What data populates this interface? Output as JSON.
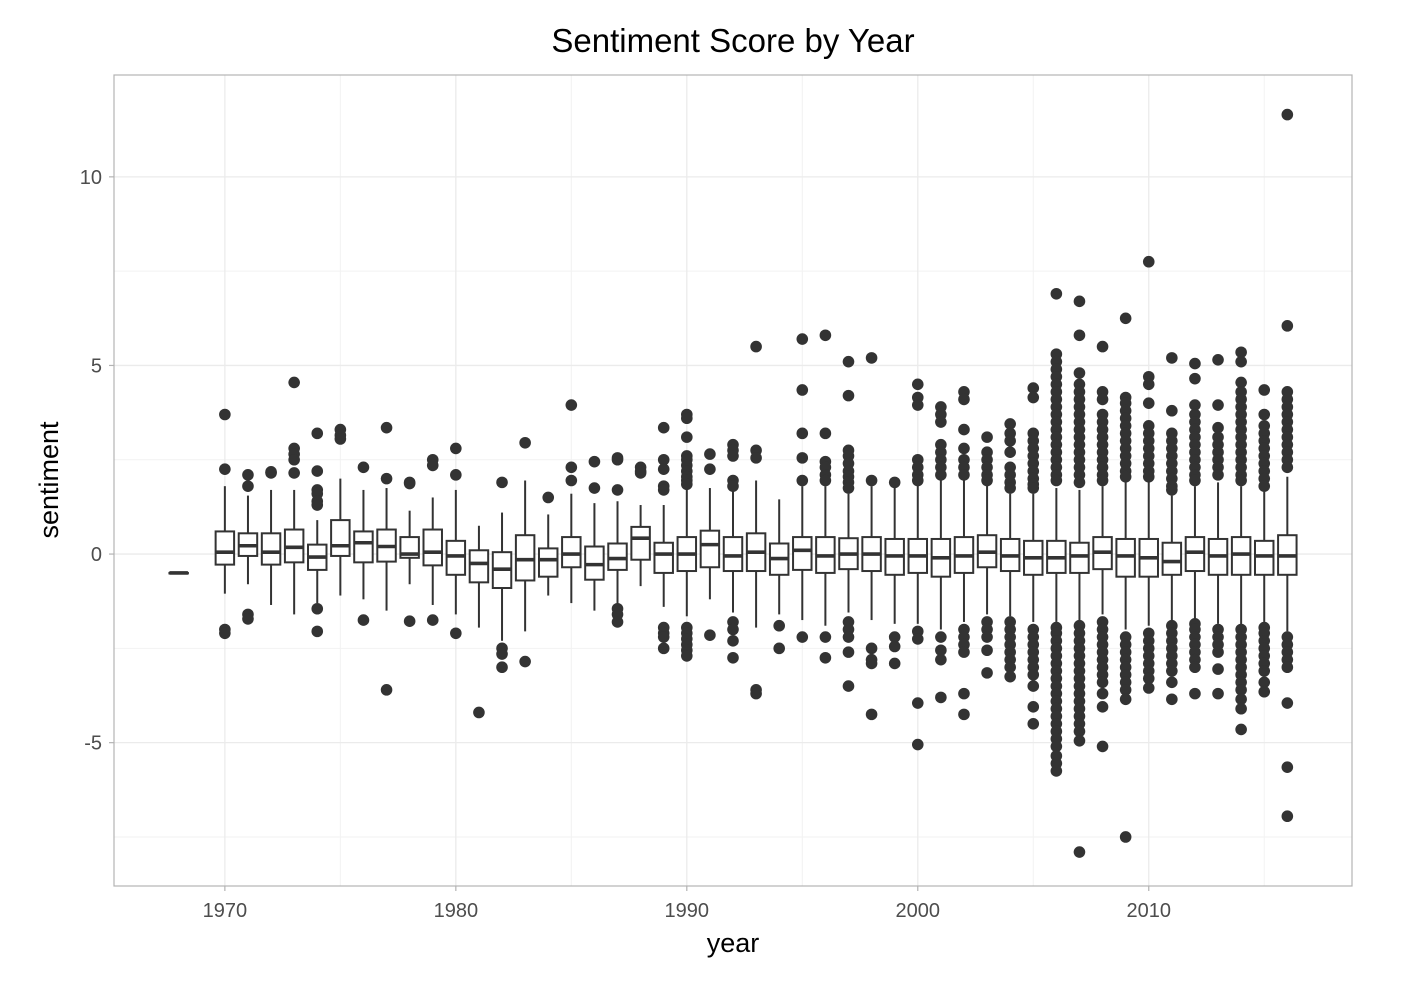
{
  "chart_data": {
    "type": "boxplot",
    "title": "Sentiment Score by Year",
    "xlabel": "year",
    "ylabel": "sentiment",
    "xlim": [
      1965.2,
      2018.8
    ],
    "ylim": [
      -8.8,
      12.7
    ],
    "x_ticks": [
      1970,
      1980,
      1990,
      2000,
      2010
    ],
    "y_ticks": [
      -5,
      0,
      5,
      10
    ],
    "x_minor_ticks": [
      1975,
      1985,
      1995,
      2005,
      2015
    ],
    "y_minor_ticks": [
      -7.5,
      -2.5,
      2.5,
      7.5
    ],
    "grid": true,
    "theme": "light",
    "colors": {
      "box_line": "#333333",
      "box_fill": "#ffffff",
      "grid": "#ebebeb",
      "panel_border": "#b3b3b3"
    },
    "boxes": [
      {
        "year": 1968,
        "q1": -0.5,
        "median": -0.5,
        "q3": -0.5,
        "whisker_low": -0.5,
        "whisker_high": -0.5,
        "outliers": []
      },
      {
        "year": 1970,
        "q1": -0.28,
        "median": 0.05,
        "q3": 0.6,
        "whisker_low": -1.05,
        "whisker_high": 1.8,
        "outliers": [
          3.7,
          2.25,
          -2.0,
          -2.1
        ]
      },
      {
        "year": 1971,
        "q1": -0.05,
        "median": 0.22,
        "q3": 0.55,
        "whisker_low": -0.8,
        "whisker_high": 1.55,
        "outliers": [
          2.1,
          1.8,
          -1.6,
          -1.72
        ]
      },
      {
        "year": 1972,
        "q1": -0.28,
        "median": 0.05,
        "q3": 0.55,
        "whisker_low": -1.35,
        "whisker_high": 1.7,
        "outliers": [
          2.15,
          2.18
        ]
      },
      {
        "year": 1973,
        "q1": -0.22,
        "median": 0.18,
        "q3": 0.65,
        "whisker_low": -1.6,
        "whisker_high": 1.7,
        "outliers": [
          4.55,
          2.8,
          2.65,
          2.5,
          2.15
        ]
      },
      {
        "year": 1974,
        "q1": -0.42,
        "median": -0.08,
        "q3": 0.25,
        "whisker_low": -1.3,
        "whisker_high": 0.9,
        "outliers": [
          3.2,
          2.2,
          1.7,
          1.6,
          1.4,
          1.3,
          -1.45,
          -2.05
        ]
      },
      {
        "year": 1975,
        "q1": -0.05,
        "median": 0.22,
        "q3": 0.9,
        "whisker_low": -1.1,
        "whisker_high": 2.0,
        "outliers": [
          3.3,
          3.15,
          3.05
        ]
      },
      {
        "year": 1976,
        "q1": -0.22,
        "median": 0.3,
        "q3": 0.6,
        "whisker_low": -1.2,
        "whisker_high": 1.7,
        "outliers": [
          2.3,
          -1.75
        ]
      },
      {
        "year": 1977,
        "q1": -0.2,
        "median": 0.2,
        "q3": 0.65,
        "whisker_low": -1.5,
        "whisker_high": 1.75,
        "outliers": [
          3.35,
          2.0,
          -3.6
        ]
      },
      {
        "year": 1978,
        "q1": -0.1,
        "median": 0.0,
        "q3": 0.45,
        "whisker_low": -0.8,
        "whisker_high": 1.15,
        "outliers": [
          1.9,
          1.87,
          -1.78
        ]
      },
      {
        "year": 1979,
        "q1": -0.3,
        "median": 0.05,
        "q3": 0.65,
        "whisker_low": -1.35,
        "whisker_high": 1.5,
        "outliers": [
          2.5,
          2.35,
          -1.75
        ]
      },
      {
        "year": 1980,
        "q1": -0.55,
        "median": -0.05,
        "q3": 0.35,
        "whisker_low": -1.6,
        "whisker_high": 1.7,
        "outliers": [
          2.8,
          2.1,
          -2.1
        ]
      },
      {
        "year": 1981,
        "q1": -0.75,
        "median": -0.25,
        "q3": 0.1,
        "whisker_low": -1.95,
        "whisker_high": 0.75,
        "outliers": [
          -4.2
        ]
      },
      {
        "year": 1982,
        "q1": -0.9,
        "median": -0.4,
        "q3": 0.05,
        "whisker_low": -2.3,
        "whisker_high": 1.1,
        "outliers": [
          1.9,
          -2.5,
          -2.65,
          -3.0
        ]
      },
      {
        "year": 1983,
        "q1": -0.7,
        "median": -0.15,
        "q3": 0.5,
        "whisker_low": -2.05,
        "whisker_high": 1.95,
        "outliers": [
          2.95,
          -2.85
        ]
      },
      {
        "year": 1984,
        "q1": -0.6,
        "median": -0.15,
        "q3": 0.15,
        "whisker_low": -1.1,
        "whisker_high": 1.05,
        "outliers": [
          1.5
        ]
      },
      {
        "year": 1985,
        "q1": -0.35,
        "median": 0.0,
        "q3": 0.45,
        "whisker_low": -1.3,
        "whisker_high": 1.6,
        "outliers": [
          3.95,
          2.3,
          1.95
        ]
      },
      {
        "year": 1986,
        "q1": -0.68,
        "median": -0.28,
        "q3": 0.2,
        "whisker_low": -1.5,
        "whisker_high": 1.35,
        "outliers": [
          2.45,
          1.75
        ]
      },
      {
        "year": 1987,
        "q1": -0.42,
        "median": -0.12,
        "q3": 0.28,
        "whisker_low": -1.35,
        "whisker_high": 1.4,
        "outliers": [
          2.55,
          2.5,
          1.7,
          -1.45,
          -1.6,
          -1.8
        ]
      },
      {
        "year": 1988,
        "q1": -0.15,
        "median": 0.42,
        "q3": 0.72,
        "whisker_low": -0.85,
        "whisker_high": 1.3,
        "outliers": [
          2.3,
          2.2,
          2.15
        ]
      },
      {
        "year": 1989,
        "q1": -0.5,
        "median": 0.0,
        "q3": 0.3,
        "whisker_low": -1.4,
        "whisker_high": 1.3,
        "outliers": [
          3.35,
          2.5,
          2.25,
          1.8,
          1.7,
          -1.95,
          -2.1,
          -2.2,
          -2.5
        ]
      },
      {
        "year": 1990,
        "q1": -0.45,
        "median": 0.0,
        "q3": 0.45,
        "whisker_low": -1.65,
        "whisker_high": 1.7,
        "outliers": [
          3.7,
          3.6,
          3.1,
          2.6,
          2.5,
          2.35,
          2.2,
          2.05,
          1.95,
          1.85,
          -1.95,
          -2.1,
          -2.25,
          -2.4,
          -2.55,
          -2.7
        ]
      },
      {
        "year": 1991,
        "q1": -0.35,
        "median": 0.25,
        "q3": 0.62,
        "whisker_low": -1.2,
        "whisker_high": 1.75,
        "outliers": [
          2.65,
          2.25,
          -2.15
        ]
      },
      {
        "year": 1992,
        "q1": -0.45,
        "median": -0.05,
        "q3": 0.45,
        "whisker_low": -1.55,
        "whisker_high": 1.75,
        "outliers": [
          2.9,
          2.75,
          2.6,
          1.95,
          1.8,
          -1.8,
          -2.0,
          -2.3,
          -2.75
        ]
      },
      {
        "year": 1993,
        "q1": -0.45,
        "median": 0.05,
        "q3": 0.55,
        "whisker_low": -1.95,
        "whisker_high": 1.95,
        "outliers": [
          5.5,
          2.75,
          2.55,
          -3.6,
          -3.7
        ]
      },
      {
        "year": 1994,
        "q1": -0.55,
        "median": -0.12,
        "q3": 0.28,
        "whisker_low": -1.6,
        "whisker_high": 1.45,
        "outliers": [
          -1.9,
          -2.5
        ]
      },
      {
        "year": 1995,
        "q1": -0.42,
        "median": 0.1,
        "q3": 0.45,
        "whisker_low": -1.75,
        "whisker_high": 1.8,
        "outliers": [
          5.7,
          4.35,
          3.2,
          2.55,
          1.95,
          -2.2
        ]
      },
      {
        "year": 1996,
        "q1": -0.5,
        "median": -0.05,
        "q3": 0.45,
        "whisker_low": -1.9,
        "whisker_high": 1.8,
        "outliers": [
          5.8,
          3.2,
          2.45,
          2.3,
          2.1,
          1.95,
          -2.2,
          -2.75
        ]
      },
      {
        "year": 1997,
        "q1": -0.4,
        "median": 0.0,
        "q3": 0.42,
        "whisker_low": -1.55,
        "whisker_high": 1.6,
        "outliers": [
          5.1,
          4.2,
          2.75,
          2.6,
          2.4,
          2.2,
          2.05,
          1.9,
          1.75,
          -1.8,
          -2.0,
          -2.2,
          -2.6,
          -3.5
        ]
      },
      {
        "year": 1998,
        "q1": -0.45,
        "median": 0.0,
        "q3": 0.45,
        "whisker_low": -1.75,
        "whisker_high": 1.8,
        "outliers": [
          5.2,
          1.95,
          -2.5,
          -2.8,
          -2.9,
          -4.25
        ]
      },
      {
        "year": 1999,
        "q1": -0.55,
        "median": -0.05,
        "q3": 0.4,
        "whisker_low": -1.85,
        "whisker_high": 1.85,
        "outliers": [
          1.9,
          -2.2,
          -2.45,
          -2.9
        ]
      },
      {
        "year": 2000,
        "q1": -0.5,
        "median": -0.05,
        "q3": 0.4,
        "whisker_low": -1.85,
        "whisker_high": 1.85,
        "outliers": [
          4.5,
          4.15,
          3.95,
          2.5,
          2.3,
          2.1,
          1.95,
          -2.05,
          -2.25,
          -3.95,
          -5.05
        ]
      },
      {
        "year": 2001,
        "q1": -0.6,
        "median": -0.1,
        "q3": 0.4,
        "whisker_low": -2.0,
        "whisker_high": 1.95,
        "outliers": [
          3.9,
          3.7,
          3.5,
          2.9,
          2.7,
          2.5,
          2.3,
          2.1,
          -2.2,
          -2.55,
          -2.8,
          -3.8
        ]
      },
      {
        "year": 2002,
        "q1": -0.5,
        "median": -0.05,
        "q3": 0.45,
        "whisker_low": -1.8,
        "whisker_high": 1.95,
        "outliers": [
          4.3,
          4.1,
          3.3,
          2.8,
          2.5,
          2.3,
          2.1,
          -2.0,
          -2.2,
          -2.4,
          -2.6,
          -3.7,
          -4.25
        ]
      },
      {
        "year": 2003,
        "q1": -0.35,
        "median": 0.05,
        "q3": 0.5,
        "whisker_low": -1.6,
        "whisker_high": 1.85,
        "outliers": [
          3.1,
          2.7,
          2.5,
          2.3,
          2.1,
          1.95,
          -1.8,
          -2.0,
          -2.2,
          -2.55,
          -3.15
        ]
      },
      {
        "year": 2004,
        "q1": -0.45,
        "median": -0.05,
        "q3": 0.4,
        "whisker_low": -1.65,
        "whisker_high": 1.6,
        "outliers": [
          3.45,
          3.2,
          3.0,
          2.7,
          2.3,
          2.1,
          1.9,
          1.75,
          -1.8,
          -2.0,
          -2.2,
          -2.4,
          -2.6,
          -2.8,
          -3.0,
          -3.25
        ]
      },
      {
        "year": 2005,
        "q1": -0.55,
        "median": -0.1,
        "q3": 0.35,
        "whisker_low": -1.8,
        "whisker_high": 1.6,
        "outliers": [
          4.4,
          4.15,
          3.2,
          3.0,
          2.8,
          2.6,
          2.4,
          2.2,
          2.0,
          1.85,
          1.75,
          -2.0,
          -2.2,
          -2.4,
          -2.6,
          -2.8,
          -3.0,
          -3.2,
          -3.5,
          -4.05,
          -4.5
        ]
      },
      {
        "year": 2006,
        "q1": -0.5,
        "median": -0.1,
        "q3": 0.35,
        "whisker_low": -1.8,
        "whisker_high": 1.75,
        "outliers": [
          6.9,
          5.3,
          5.1,
          4.9,
          4.7,
          4.5,
          4.3,
          4.1,
          3.9,
          3.7,
          3.5,
          3.3,
          3.1,
          2.9,
          2.7,
          2.5,
          2.3,
          2.1,
          1.95,
          -1.95,
          -2.1,
          -2.3,
          -2.5,
          -2.7,
          -2.9,
          -3.1,
          -3.3,
          -3.5,
          -3.7,
          -3.9,
          -4.1,
          -4.3,
          -4.5,
          -4.7,
          -4.9,
          -5.1,
          -5.35,
          -5.55,
          -5.75
        ]
      },
      {
        "year": 2007,
        "q1": -0.5,
        "median": -0.05,
        "q3": 0.3,
        "whisker_low": -1.8,
        "whisker_high": 1.7,
        "outliers": [
          6.7,
          5.8,
          4.8,
          4.5,
          4.3,
          4.1,
          3.9,
          3.7,
          3.5,
          3.3,
          3.1,
          2.9,
          2.7,
          2.5,
          2.3,
          2.1,
          1.9,
          -1.9,
          -2.1,
          -2.3,
          -2.5,
          -2.7,
          -2.9,
          -3.1,
          -3.3,
          -3.5,
          -3.7,
          -3.9,
          -4.1,
          -4.3,
          -4.5,
          -4.7,
          -4.95,
          -7.9
        ]
      },
      {
        "year": 2008,
        "q1": -0.4,
        "median": 0.05,
        "q3": 0.45,
        "whisker_low": -1.6,
        "whisker_high": 1.8,
        "outliers": [
          5.5,
          4.3,
          4.1,
          3.7,
          3.5,
          3.3,
          3.1,
          2.9,
          2.7,
          2.5,
          2.3,
          2.1,
          1.95,
          -1.8,
          -2.0,
          -2.2,
          -2.4,
          -2.6,
          -2.8,
          -3.0,
          -3.2,
          -3.4,
          -3.7,
          -4.05,
          -5.1
        ]
      },
      {
        "year": 2009,
        "q1": -0.6,
        "median": -0.05,
        "q3": 0.4,
        "whisker_low": -2.0,
        "whisker_high": 1.95,
        "outliers": [
          6.25,
          4.15,
          4.0,
          3.8,
          3.6,
          3.4,
          3.2,
          3.0,
          2.8,
          2.6,
          2.4,
          2.2,
          2.05,
          -2.2,
          -2.4,
          -2.6,
          -2.8,
          -3.0,
          -3.2,
          -3.4,
          -3.6,
          -3.85,
          -7.5
        ]
      },
      {
        "year": 2010,
        "q1": -0.6,
        "median": -0.1,
        "q3": 0.4,
        "whisker_low": -1.9,
        "whisker_high": 1.95,
        "outliers": [
          7.75,
          4.7,
          4.5,
          4.0,
          3.4,
          3.2,
          3.0,
          2.8,
          2.6,
          2.4,
          2.2,
          2.05,
          -2.1,
          -2.3,
          -2.5,
          -2.7,
          -2.9,
          -3.1,
          -3.3,
          -3.55
        ]
      },
      {
        "year": 2011,
        "q1": -0.55,
        "median": -0.2,
        "q3": 0.3,
        "whisker_low": -1.75,
        "whisker_high": 1.55,
        "outliers": [
          5.2,
          3.8,
          3.2,
          3.0,
          2.8,
          2.6,
          2.4,
          2.2,
          2.0,
          1.8,
          1.7,
          -1.9,
          -2.1,
          -2.3,
          -2.5,
          -2.7,
          -2.9,
          -3.1,
          -3.4,
          -3.85
        ]
      },
      {
        "year": 2012,
        "q1": -0.45,
        "median": 0.05,
        "q3": 0.45,
        "whisker_low": -1.75,
        "whisker_high": 1.8,
        "outliers": [
          5.05,
          4.65,
          3.95,
          3.7,
          3.5,
          3.3,
          3.1,
          2.9,
          2.7,
          2.5,
          2.3,
          2.1,
          1.95,
          -1.85,
          -2.0,
          -2.2,
          -2.4,
          -2.6,
          -2.8,
          -3.0,
          -3.7
        ]
      },
      {
        "year": 2013,
        "q1": -0.55,
        "median": -0.05,
        "q3": 0.4,
        "whisker_low": -1.85,
        "whisker_high": 1.9,
        "outliers": [
          5.15,
          3.95,
          3.35,
          3.1,
          2.9,
          2.7,
          2.5,
          2.3,
          2.1,
          -2.0,
          -2.2,
          -2.4,
          -2.6,
          -3.05,
          -3.7
        ]
      },
      {
        "year": 2014,
        "q1": -0.55,
        "median": 0.0,
        "q3": 0.45,
        "whisker_low": -1.9,
        "whisker_high": 1.8,
        "outliers": [
          5.35,
          5.1,
          4.55,
          4.3,
          4.1,
          3.9,
          3.7,
          3.5,
          3.3,
          3.1,
          2.9,
          2.7,
          2.5,
          2.3,
          2.1,
          1.95,
          -2.0,
          -2.2,
          -2.4,
          -2.6,
          -2.8,
          -3.0,
          -3.2,
          -3.4,
          -3.6,
          -3.85,
          -4.1,
          -4.65
        ]
      },
      {
        "year": 2015,
        "q1": -0.55,
        "median": -0.05,
        "q3": 0.35,
        "whisker_low": -1.8,
        "whisker_high": 1.65,
        "outliers": [
          4.35,
          3.7,
          3.4,
          3.2,
          3.0,
          2.8,
          2.6,
          2.4,
          2.2,
          2.0,
          1.8,
          -1.95,
          -2.1,
          -2.3,
          -2.5,
          -2.7,
          -2.9,
          -3.1,
          -3.4,
          -3.65
        ]
      },
      {
        "year": 2016,
        "q1": -0.55,
        "median": -0.05,
        "q3": 0.5,
        "whisker_low": -2.05,
        "whisker_high": 2.05,
        "outliers": [
          11.65,
          6.05,
          4.3,
          4.1,
          3.9,
          3.7,
          3.5,
          3.3,
          3.1,
          2.9,
          2.7,
          2.5,
          2.3,
          -2.2,
          -2.4,
          -2.6,
          -2.8,
          -3.0,
          -3.95,
          -5.65,
          -6.95
        ]
      }
    ]
  }
}
